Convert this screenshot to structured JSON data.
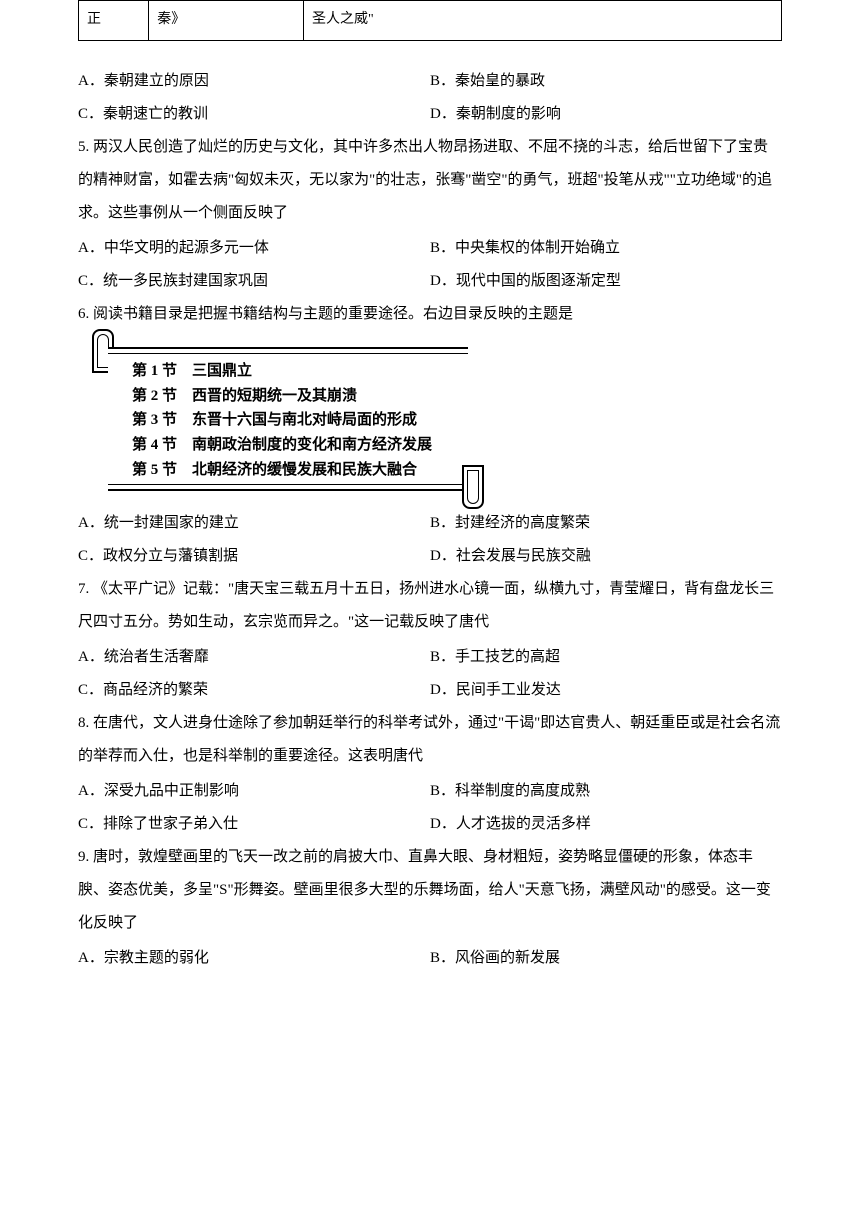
{
  "table": {
    "row": {
      "c1": "正",
      "c2": "秦》",
      "c3": "圣人之威\""
    }
  },
  "q4": {
    "a": "A．秦朝建立的原因",
    "b": "B．秦始皇的暴政",
    "c": "C．秦朝速亡的教训",
    "d": "D．秦朝制度的影响"
  },
  "q5": {
    "text": "5. 两汉人民创造了灿烂的历史与文化，其中许多杰出人物昂扬进取、不屈不挠的斗志，给后世留下了宝贵的精神财富，如霍去病\"匈奴未灭，无以家为\"的壮志，张骞\"凿空\"的勇气，班超\"投笔从戎\"\"立功绝域\"的追求。这些事例从一个侧面反映了",
    "a": "A．中华文明的起源多元一体",
    "b": "B．中央集权的体制开始确立",
    "c": "C．统一多民族封建国家巩固",
    "d": "D．现代中国的版图逐渐定型"
  },
  "q6": {
    "text": "6. 阅读书籍目录是把握书籍结构与主题的重要途径。右边目录反映的主题是",
    "toc": {
      "l1": "第 1 节　三国鼎立",
      "l2": "第 2 节　西晋的短期统一及其崩溃",
      "l3": "第 3 节　东晋十六国与南北对峙局面的形成",
      "l4": "第 4 节　南朝政治制度的变化和南方经济发展",
      "l5": "第 5 节　北朝经济的缓慢发展和民族大融合"
    },
    "a": "A．统一封建国家的建立",
    "b": "B．封建经济的高度繁荣",
    "c": "C．政权分立与藩镇割据",
    "d": "D．社会发展与民族交融"
  },
  "q7": {
    "text": "7. 《太平广记》记载：\"唐天宝三载五月十五日，扬州进水心镜一面，纵横九寸，青莹耀日，背有盘龙长三尺四寸五分。势如生动，玄宗览而异之。\"这一记载反映了唐代",
    "a": "A．统治者生活奢靡",
    "b": "B．手工技艺的高超",
    "c": "C．商品经济的繁荣",
    "d": "D．民间手工业发达"
  },
  "q8": {
    "text": "8. 在唐代，文人进身仕途除了参加朝廷举行的科举考试外，通过\"干谒\"即达官贵人、朝廷重臣或是社会名流的举荐而入仕，也是科举制的重要途径。这表明唐代",
    "a": "A．深受九品中正制影响",
    "b": "B．科举制度的高度成熟",
    "c": "C．排除了世家子弟入仕",
    "d": "D．人才选拔的灵活多样"
  },
  "q9": {
    "text": "9. 唐时，敦煌壁画里的飞天一改之前的肩披大巾、直鼻大眼、身材粗短，姿势略显僵硬的形象，体态丰腴、姿态优美，多呈\"S\"形舞姿。壁画里很多大型的乐舞场面，给人\"天意飞扬，满壁风动\"的感受。这一变化反映了",
    "a": "A．宗教主题的弱化",
    "b": "B．风俗画的新发展"
  }
}
